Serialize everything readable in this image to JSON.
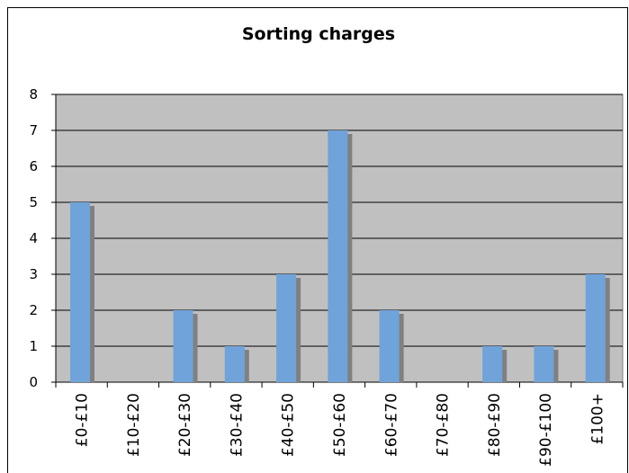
{
  "chart_data": {
    "type": "bar",
    "title": "Sorting charges",
    "categories": [
      "£0-£10",
      "£10-£20",
      "£20-£30",
      "£30-£40",
      "£40-£50",
      "£50-£60",
      "£60-£70",
      "£70-£80",
      "£80-£90",
      "£90-£100",
      "£100+"
    ],
    "values": [
      5,
      0,
      2,
      1,
      3,
      7,
      2,
      0,
      1,
      1,
      3
    ],
    "color": "#6fa3d9",
    "ylim": [
      0,
      8
    ],
    "yticks": [
      0,
      1,
      2,
      3,
      4,
      5,
      6,
      7,
      8
    ],
    "grid": true
  }
}
